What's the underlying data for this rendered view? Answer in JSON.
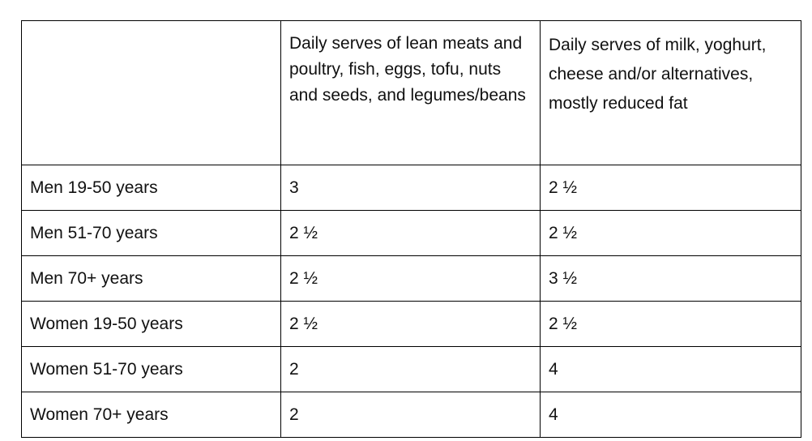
{
  "table": {
    "headers": [
      "",
      "Daily serves of lean meats and poultry, fish, eggs, tofu, nuts and seeds, and legumes/beans",
      "Daily serves of milk, yoghurt, cheese and/or alternatives, mostly reduced fat"
    ],
    "rows": [
      [
        "Men 19-50 years",
        "3",
        "2 ½"
      ],
      [
        "Men 51-70 years",
        "2 ½",
        "2 ½"
      ],
      [
        "Men 70+ years",
        "2 ½",
        "3 ½"
      ],
      [
        "Women 19-50 years",
        "2 ½",
        "2 ½"
      ],
      [
        "Women 51-70 years",
        "2",
        "4"
      ],
      [
        "Women 70+ years",
        "2",
        "4"
      ]
    ]
  }
}
